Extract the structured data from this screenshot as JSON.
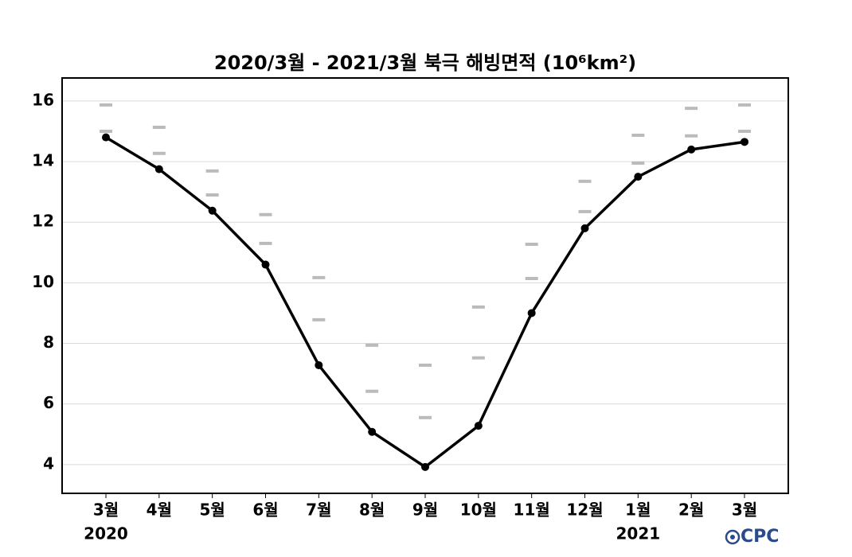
{
  "chart_data": {
    "type": "line",
    "title": "2020/3월 - 2021/3월 북극 해빙면적 (10⁶km²)",
    "categories": [
      "3월",
      "4월",
      "5월",
      "6월",
      "7월",
      "8월",
      "9월",
      "10월",
      "11월",
      "12월",
      "1월",
      "2월",
      "3월"
    ],
    "years": [
      "2020",
      null,
      null,
      null,
      null,
      null,
      null,
      null,
      null,
      null,
      "2021",
      null,
      null
    ],
    "series": [
      {
        "color": "#000000",
        "style": "line",
        "values": [
          14.8,
          13.75,
          12.38,
          10.6,
          7.28,
          5.08,
          3.92,
          5.28,
          9.0,
          11.8,
          13.5,
          14.4,
          14.65
        ]
      },
      {
        "color": "#bbbbbb",
        "style": "dash",
        "values": [
          15.87,
          15.13,
          13.69,
          12.25,
          10.17,
          7.94,
          7.28,
          9.2,
          11.27,
          13.35,
          14.87,
          15.76,
          15.87
        ]
      },
      {
        "color": "#bbbbbb",
        "style": "dash",
        "values": [
          15.0,
          14.27,
          12.9,
          11.3,
          8.78,
          6.42,
          5.55,
          7.52,
          10.14,
          12.35,
          13.95,
          14.85,
          15.0
        ]
      }
    ],
    "ylim": [
      3.05,
      16.76
    ],
    "yticks": [
      4,
      6,
      8,
      10,
      12,
      14,
      16
    ],
    "grid": true,
    "source": "CPC"
  }
}
